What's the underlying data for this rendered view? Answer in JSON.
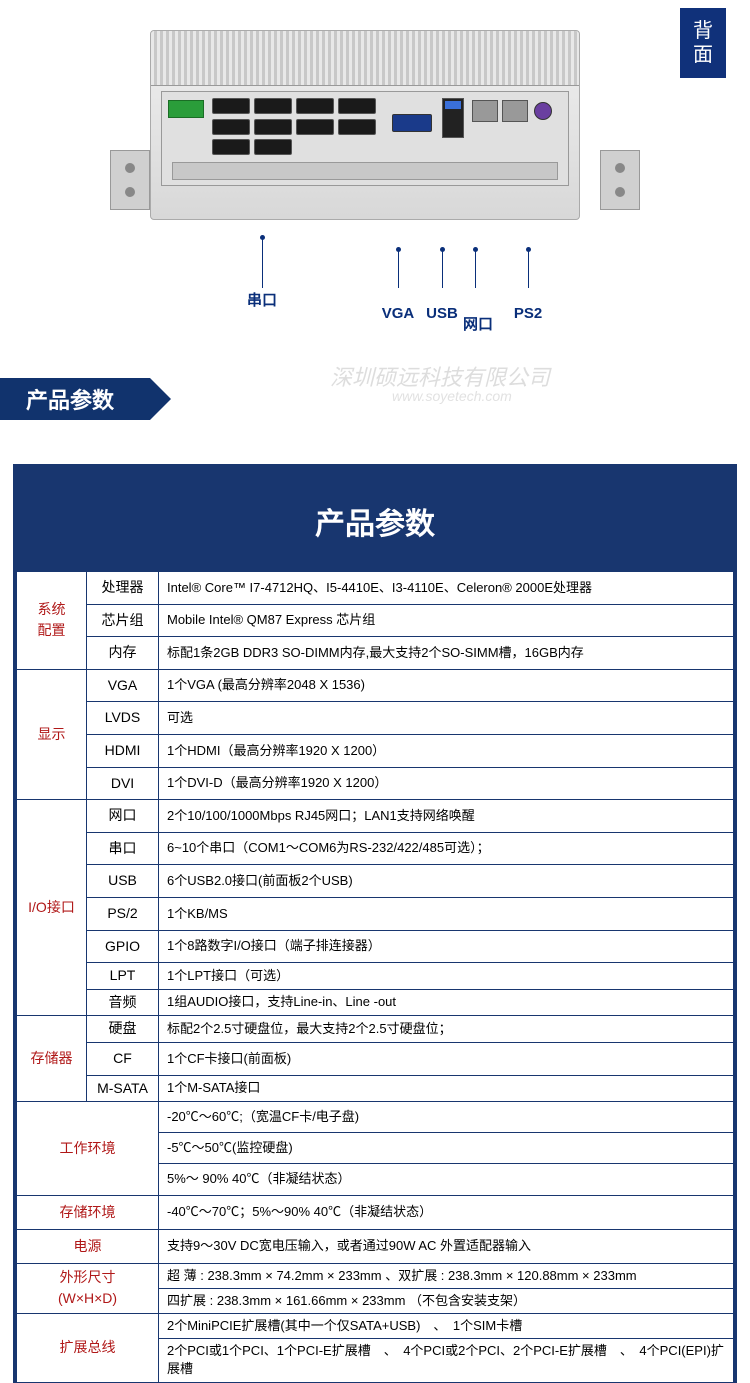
{
  "watermark": {
    "company": "深圳硕远科技有限公司",
    "url": "www.soyetech.com"
  },
  "badge": {
    "line1": "背",
    "line2": "面"
  },
  "callouts": {
    "serial": "串口",
    "vga": "VGA",
    "usb": "USB",
    "lan": "网口",
    "ps2": "PS2"
  },
  "ribbon": "产品参数",
  "table": {
    "title": "产品参数",
    "colwidths": {
      "cat": 70,
      "sub": 72
    },
    "groups": [
      {
        "category": "系统\n配置",
        "rows": [
          {
            "sub": "处理器",
            "val": "Intel® Core™ I7-4712HQ、I5-4410E、I3-4110E、Celeron® 2000E处理器"
          },
          {
            "sub": "芯片组",
            "val": "Mobile Intel® QM87 Express 芯片组"
          },
          {
            "sub": "内存",
            "val": "标配1条2GB DDR3 SO-DIMM内存,最大支持2个SO-SIMM槽，16GB内存"
          }
        ]
      },
      {
        "category": "显示",
        "rows": [
          {
            "sub": "VGA",
            "val": "1个VGA (最高分辨率2048 X 1536)"
          },
          {
            "sub": "LVDS",
            "val": "可选"
          },
          {
            "sub": "HDMI",
            "val": "1个HDMI（最高分辨率1920 X 1200）"
          },
          {
            "sub": "DVI",
            "val": "1个DVI-D（最高分辨率1920 X 1200）"
          }
        ]
      },
      {
        "category": "I/O接口",
        "rows": [
          {
            "sub": "网口",
            "val": "2个10/100/1000Mbps RJ45网口；LAN1支持网络唤醒"
          },
          {
            "sub": "串口",
            "val": "6~10个串口（COM1～COM6为RS-232/422/485可选）；"
          },
          {
            "sub": "USB",
            "val": "6个USB2.0接口(前面板2个USB)"
          },
          {
            "sub": "PS/2",
            "val": "1个KB/MS"
          },
          {
            "sub": "GPIO",
            "val": "1个8路数字I/O接口（端子排连接器）"
          },
          {
            "sub": "LPT",
            "val": "1个LPT接口（可选）",
            "tight": true
          },
          {
            "sub": "音频",
            "val": "1组AUDIO接口，支持Line-in、Line -out",
            "tight": true
          }
        ]
      },
      {
        "category": "存储器",
        "rows": [
          {
            "sub": "硬盘",
            "val": "标配2个2.5寸硬盘位，最大支持2个2.5寸硬盘位；",
            "tight": true
          },
          {
            "sub": "CF",
            "val": "1个CF卡接口(前面板)"
          },
          {
            "sub": "M-SATA",
            "val": "1个M-SATA接口",
            "tight": true
          }
        ]
      }
    ],
    "wide_groups": [
      {
        "category": "工作环境",
        "rows": [
          "-20℃～60℃;（宽温CF卡/电子盘)",
          "-5℃～50℃(监控硬盘)",
          "5%～ 90% 40℃（非凝结状态）"
        ]
      },
      {
        "category": "存储环境",
        "rows": [
          "-40℃～70℃；5%～90% 40℃（非凝结状态）"
        ]
      },
      {
        "category": "电源",
        "rows": [
          "支持9～30V DC宽电压输入，或者通过90W AC 外置适配器输入"
        ]
      },
      {
        "category": "外形尺寸\n(W×H×D)",
        "rows": [
          "超 薄 : 238.3mm × 74.2mm × 233mm 、双扩展 : 238.3mm × 120.88mm × 233mm",
          "四扩展 : 238.3mm × 161.66mm × 233mm    （不包含安装支架）"
        ],
        "tight": true
      },
      {
        "category": "扩展总线",
        "rows": [
          "2个MiniPCIE扩展槽(其中一个仅SATA+USB)　、　1个SIM卡槽",
          "2个PCI或1个PCI、1个PCI-E扩展槽　、　4个PCI或2个PCI、2个PCI-E扩展槽　、　4个PCI(EPI)扩展槽"
        ],
        "tight": true
      }
    ]
  }
}
